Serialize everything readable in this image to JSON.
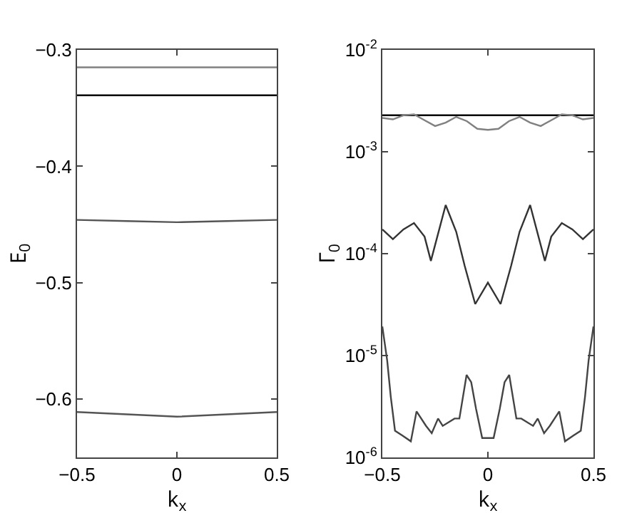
{
  "chart_data": [
    {
      "type": "line",
      "xlabel": "k$_{x}$",
      "ylabel": "E$_{0}$",
      "xlim": [
        -0.5,
        0.5
      ],
      "xticks": [
        -0.5,
        0,
        0.5
      ],
      "ylim": [
        -0.65,
        -0.3
      ],
      "yticks": [
        -0.6,
        -0.5,
        -0.4,
        -0.3
      ],
      "series": [
        {
          "color": "#808080",
          "x": [
            -0.5,
            0.5
          ],
          "values": [
            -0.315,
            -0.315
          ]
        },
        {
          "color": "#000000",
          "x": [
            -0.5,
            0.5
          ],
          "values": [
            -0.339,
            -0.339
          ]
        },
        {
          "color": "#555555",
          "x": [
            -0.5,
            -0.25,
            0,
            0.25,
            0.5
          ],
          "values": [
            -0.446,
            -0.447,
            -0.448,
            -0.447,
            -0.446
          ]
        },
        {
          "color": "#555555",
          "x": [
            -0.5,
            -0.25,
            0,
            0.25,
            0.5
          ],
          "values": [
            -0.611,
            -0.613,
            -0.615,
            -0.613,
            -0.611
          ]
        }
      ]
    },
    {
      "type": "line",
      "xlabel": "k$_{x}$",
      "ylabel": "Γ$_{0}$",
      "log": "y",
      "xlim": [
        -0.5,
        0.5
      ],
      "xticks": [
        -0.5,
        0,
        0.5
      ],
      "ylim": [
        1e-06,
        0.01
      ],
      "yticks": [
        {
          "value": 1e-06,
          "label": "10$^{-6}$"
        },
        {
          "value": 1e-05,
          "label": "10$^{-5}$"
        },
        {
          "value": 0.0001,
          "label": "10$^{-4}$"
        },
        {
          "value": 0.001,
          "label": "10$^{-3}$"
        },
        {
          "value": 0.01,
          "label": "10$^{-2}$"
        }
      ],
      "series": [
        {
          "color": "#000000",
          "x": [
            -0.5,
            0.5
          ],
          "values": [
            0.00228,
            0.00228
          ]
        },
        {
          "color": "#808080",
          "x": [
            -0.5,
            -0.45,
            -0.4,
            -0.35,
            -0.3,
            -0.25,
            -0.2,
            -0.15,
            -0.1,
            -0.05,
            0,
            0.05,
            0.1,
            0.15,
            0.2,
            0.25,
            0.3,
            0.35,
            0.4,
            0.45,
            0.5
          ],
          "values": [
            0.00215,
            0.00208,
            0.00228,
            0.00233,
            0.00204,
            0.00179,
            0.00193,
            0.0022,
            0.002,
            0.00168,
            0.00164,
            0.00168,
            0.002,
            0.0022,
            0.00193,
            0.00179,
            0.00204,
            0.00233,
            0.00228,
            0.00208,
            0.00215
          ]
        },
        {
          "color": "#333333",
          "x": [
            -0.5,
            -0.45,
            -0.4,
            -0.35,
            -0.3,
            -0.27,
            -0.2,
            -0.15,
            -0.11,
            -0.06,
            0,
            0.06,
            0.11,
            0.15,
            0.2,
            0.27,
            0.3,
            0.35,
            0.4,
            0.45,
            0.5
          ],
          "values": [
            0.000173,
            0.000139,
            0.000173,
            0.0002,
            0.000147,
            8.5e-05,
            0.0003,
            0.000164,
            7.6e-05,
            3.2e-05,
            5.2e-05,
            3.2e-05,
            7.6e-05,
            0.000164,
            0.0003,
            8.5e-05,
            0.000147,
            0.0002,
            0.000173,
            0.000139,
            0.000173
          ]
        },
        {
          "color": "#444444",
          "x": [
            -0.5,
            -0.477,
            -0.46,
            -0.44,
            -0.405,
            -0.365,
            -0.338,
            -0.293,
            -0.266,
            -0.236,
            -0.214,
            -0.158,
            -0.135,
            -0.101,
            -0.079,
            -0.056,
            -0.027,
            0,
            0.027,
            0.056,
            0.079,
            0.101,
            0.135,
            0.158,
            0.214,
            0.236,
            0.266,
            0.293,
            0.338,
            0.365,
            0.405,
            0.44,
            0.46,
            0.477,
            0.5
          ],
          "values": [
            1.93e-05,
            8.96e-06,
            3.94e-06,
            1.83e-06,
            1.64e-06,
            1.44e-06,
            2.83e-06,
            2.04e-06,
            1.73e-06,
            2.41e-06,
            2.04e-06,
            2.41e-06,
            2.41e-06,
            6.45e-06,
            5.47e-06,
            2.99e-06,
            1.55e-06,
            1.55e-06,
            1.55e-06,
            2.99e-06,
            5.47e-06,
            6.45e-06,
            2.41e-06,
            2.41e-06,
            2.04e-06,
            2.41e-06,
            1.73e-06,
            2.04e-06,
            2.83e-06,
            1.44e-06,
            1.64e-06,
            1.83e-06,
            3.94e-06,
            8.96e-06,
            1.93e-05
          ]
        }
      ]
    }
  ]
}
